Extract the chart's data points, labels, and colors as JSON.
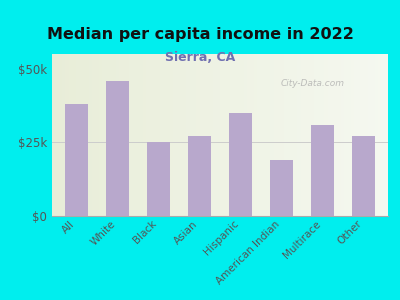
{
  "title": "Median per capita income in 2022",
  "subtitle": "Sierra, CA",
  "categories": [
    "All",
    "White",
    "Black",
    "Asian",
    "Hispanic",
    "American Indian",
    "Multirace",
    "Other"
  ],
  "values": [
    38000,
    46000,
    25000,
    27000,
    35000,
    19000,
    31000,
    27000
  ],
  "bar_color": "#b8a8cc",
  "background_outer": "#00EEEE",
  "background_inner_left": "#e8edd8",
  "background_inner_right": "#f5f8f0",
  "title_color": "#111111",
  "subtitle_color": "#7070b0",
  "tick_label_color": "#555555",
  "watermark": "City-Data.com",
  "ylim": [
    0,
    55000
  ],
  "yticks": [
    0,
    25000,
    50000
  ],
  "ytick_labels": [
    "$0",
    "$25k",
    "$50k"
  ]
}
